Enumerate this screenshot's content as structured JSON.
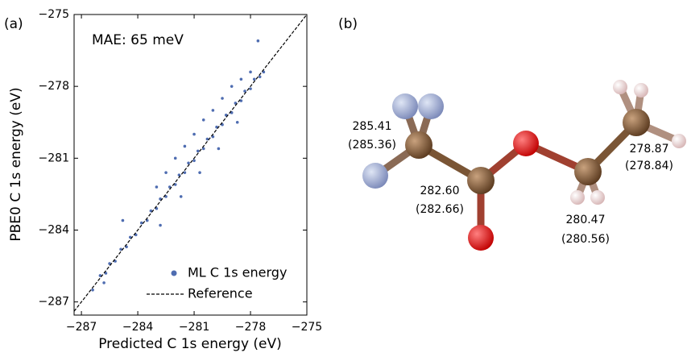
{
  "chart_data": {
    "type": "scatter",
    "panel_label": "(a)",
    "xlabel": "Predicted C 1s energy (eV)",
    "ylabel": "PBE0 C 1s energy (eV)",
    "annotation": "MAE: 65 meV",
    "xlim": [
      -287.39,
      -275
    ],
    "ylim": [
      -287.55,
      -275
    ],
    "xticks": [
      {
        "value": -287,
        "label": "−287"
      },
      {
        "value": -284,
        "label": "−284"
      },
      {
        "value": -281,
        "label": "−281"
      },
      {
        "value": -278,
        "label": "−278"
      },
      {
        "value": -275,
        "label": "−275"
      }
    ],
    "yticks": [
      {
        "value": -287,
        "label": "−287"
      },
      {
        "value": -284,
        "label": "−284"
      },
      {
        "value": -281,
        "label": "−281"
      },
      {
        "value": -278,
        "label": "−278"
      },
      {
        "value": -275,
        "label": "−275"
      }
    ],
    "legend": "lower right",
    "series": [
      {
        "name": "ML C 1s energy",
        "type": "scatter",
        "color": "#4f6db1",
        "x": [
          -286.4,
          -286.0,
          -285.7,
          -285.5,
          -285.2,
          -284.9,
          -284.6,
          -284.4,
          -284.1,
          -283.8,
          -283.5,
          -283.3,
          -283.0,
          -282.8,
          -282.5,
          -282.3,
          -282.0,
          -281.8,
          -281.5,
          -281.3,
          -281.0,
          -280.8,
          -280.5,
          -280.3,
          -280.0,
          -279.8,
          -279.5,
          -279.3,
          -279.0,
          -278.8,
          -278.5,
          -278.3,
          -278.0,
          -277.8,
          -277.5,
          -277.3,
          -283.0,
          -282.5,
          -282.0,
          -281.5,
          -281.0,
          -280.5,
          -280.0,
          -279.5,
          -279.0,
          -278.5,
          -278.0,
          -282.8,
          -281.7,
          -280.7,
          -279.7,
          -278.7,
          -277.6,
          -284.8,
          -285.8
        ],
        "values": [
          -286.5,
          -285.9,
          -285.8,
          -285.4,
          -285.3,
          -284.8,
          -284.7,
          -284.3,
          -284.2,
          -283.7,
          -283.6,
          -283.2,
          -283.1,
          -282.7,
          -282.6,
          -282.2,
          -282.1,
          -281.7,
          -281.6,
          -281.2,
          -281.1,
          -280.7,
          -280.6,
          -280.2,
          -280.1,
          -279.7,
          -279.6,
          -279.2,
          -279.1,
          -278.7,
          -278.6,
          -278.2,
          -278.1,
          -277.7,
          -277.6,
          -277.4,
          -282.2,
          -281.6,
          -281.0,
          -280.5,
          -280.0,
          -279.4,
          -279.0,
          -278.5,
          -278.0,
          -277.7,
          -277.4,
          -283.8,
          -282.6,
          -281.6,
          -280.6,
          -279.5,
          -276.1,
          -283.6,
          -286.2
        ]
      },
      {
        "name": "Reference",
        "type": "line",
        "dashed": true,
        "color": "#000000",
        "x": [
          -287.39,
          -275
        ],
        "values": [
          -287.39,
          -275
        ]
      }
    ]
  },
  "molecule": {
    "panel_label": "(b)",
    "labels": [
      {
        "predicted": "285.41",
        "reference": "(285.36)"
      },
      {
        "predicted": "282.60",
        "reference": "(282.66)"
      },
      {
        "predicted": "280.47",
        "reference": "(280.56)"
      },
      {
        "predicted": "278.87",
        "reference": "(278.84)"
      }
    ]
  }
}
